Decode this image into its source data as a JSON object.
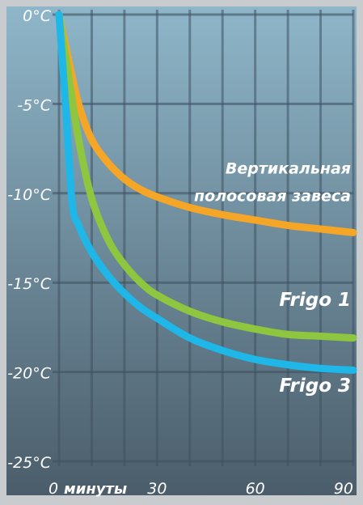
{
  "chart_data": {
    "type": "line",
    "title": "",
    "xlabel": "минуты",
    "ylabel": "",
    "xlim": [
      0,
      90
    ],
    "ylim": [
      -25,
      0
    ],
    "x_ticks": [
      {
        "value": 0,
        "label": "0"
      },
      {
        "value": 30,
        "label": "30"
      },
      {
        "value": 60,
        "label": "60"
      },
      {
        "value": 90,
        "label": "90"
      }
    ],
    "y_ticks": [
      {
        "value": 0,
        "label": "0°C"
      },
      {
        "value": -5,
        "label": "-5°C"
      },
      {
        "value": -10,
        "label": "-10°C"
      },
      {
        "value": -15,
        "label": "-15°C"
      },
      {
        "value": -20,
        "label": "-20°C"
      },
      {
        "value": -25,
        "label": "-25°C"
      }
    ],
    "grid": true,
    "legend": "series labels placed next to lines on the right",
    "background_gradient": [
      "#8eb6c9",
      "#4b5d6a"
    ],
    "series": [
      {
        "name": "Вертикальная полосовая завеса",
        "label_lines": [
          "Вертикальная",
          "полосовая завеса"
        ],
        "color": "#f6a626",
        "x": [
          0,
          3,
          6,
          10,
          15,
          20,
          25,
          30,
          40,
          50,
          60,
          70,
          80,
          90
        ],
        "values": [
          0,
          -2.6,
          -5.0,
          -7.0,
          -8.3,
          -9.2,
          -9.8,
          -10.2,
          -10.8,
          -11.2,
          -11.5,
          -11.8,
          -12.0,
          -12.2
        ]
      },
      {
        "name": "Frigo 1",
        "label_lines": [
          "Frigo 1"
        ],
        "color": "#8ec63f",
        "x": [
          0,
          3,
          6,
          10,
          15,
          20,
          25,
          30,
          40,
          50,
          60,
          70,
          80,
          90
        ],
        "values": [
          0,
          -3.5,
          -7.0,
          -10.3,
          -12.6,
          -14.0,
          -15.0,
          -15.7,
          -16.6,
          -17.2,
          -17.6,
          -17.9,
          -18.0,
          -18.1
        ]
      },
      {
        "name": "Frigo 3",
        "label_lines": [
          "Frigo 3"
        ],
        "color": "#1fb6e8",
        "x": [
          0,
          2,
          4,
          6,
          10,
          15,
          20,
          25,
          30,
          40,
          50,
          60,
          70,
          80,
          90
        ],
        "values": [
          0,
          -5.0,
          -10.5,
          -11.8,
          -13.3,
          -14.6,
          -15.6,
          -16.4,
          -17.0,
          -18.1,
          -18.8,
          -19.3,
          -19.6,
          -19.8,
          -19.9
        ]
      }
    ]
  }
}
